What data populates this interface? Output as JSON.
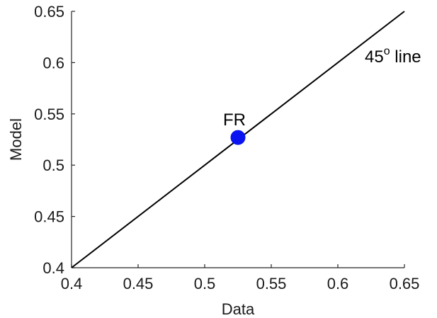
{
  "chart_data": {
    "type": "scatter",
    "xlabel": "Data",
    "ylabel": "Model",
    "xlim": [
      0.4,
      0.65
    ],
    "ylim": [
      0.4,
      0.65
    ],
    "xticks": [
      "0.4",
      "0.45",
      "0.5",
      "0.55",
      "0.6",
      "0.65"
    ],
    "yticks": [
      "0.4",
      "0.45",
      "0.5",
      "0.55",
      "0.6",
      "0.65"
    ],
    "xtick_values": [
      0.4,
      0.45,
      0.5,
      0.55,
      0.6,
      0.65
    ],
    "ytick_values": [
      0.4,
      0.45,
      0.5,
      0.55,
      0.6,
      0.65
    ],
    "grid": false,
    "points": [
      {
        "label": "FR",
        "x": 0.525,
        "y": 0.527
      }
    ],
    "reference_line": {
      "label_base": "45",
      "label_sup": "o",
      "label_rest": " line",
      "x": [
        0.4,
        0.65
      ],
      "y": [
        0.4,
        0.65
      ]
    },
    "colors": {
      "point": "#0a14f0",
      "line": "#000000",
      "axis": "#262626"
    }
  }
}
